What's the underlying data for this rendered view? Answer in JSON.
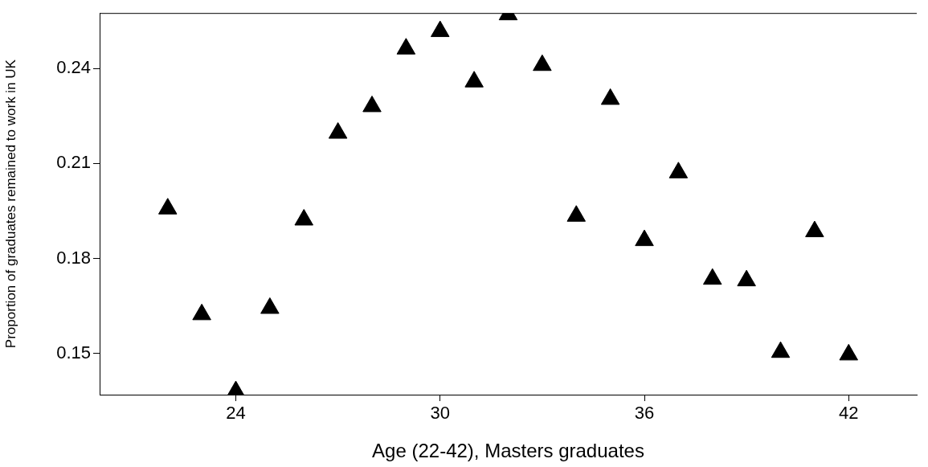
{
  "chart_data": {
    "type": "scatter",
    "xlabel": "Age (22-42), Masters graduates",
    "ylabel": "Proportion of graduates remained to work in UK",
    "x": [
      22,
      23,
      24,
      25,
      26,
      27,
      28,
      29,
      30,
      31,
      32,
      33,
      34,
      35,
      36,
      37,
      38,
      39,
      40,
      41,
      42
    ],
    "series": [
      {
        "color": "#000000",
        "values": [
          0.1957,
          0.1623,
          0.138,
          0.1643,
          0.1922,
          0.2196,
          0.228,
          0.2462,
          0.2517,
          0.2358,
          0.257,
          0.241,
          0.1934,
          0.2303,
          0.1857,
          0.2071,
          0.1735,
          0.173,
          0.1504,
          0.1885,
          0.1496
        ]
      }
    ],
    "marker": "triangle",
    "xlim": [
      20,
      44
    ],
    "ylim": [
      0.137,
      0.2575
    ],
    "xticks": [
      24,
      30,
      36,
      42
    ],
    "yticks": [
      0.15,
      0.18,
      0.21,
      0.24
    ],
    "grid": false,
    "legend": false
  }
}
